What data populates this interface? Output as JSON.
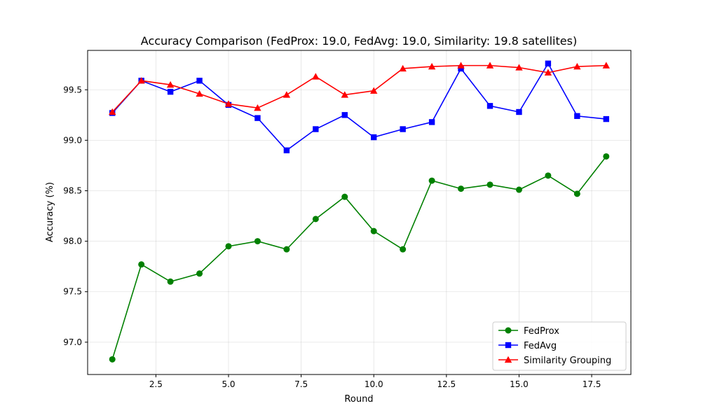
{
  "chart_data": {
    "type": "line",
    "title": "Accuracy Comparison (FedProx: 19.0, FedAvg: 19.0, Similarity: 19.8 satellites)",
    "xlabel": "Round",
    "ylabel": "Accuracy (%)",
    "xlim": [
      0.15,
      18.85
    ],
    "ylim": [
      96.68,
      99.89
    ],
    "x_ticks": [
      2.5,
      5.0,
      7.5,
      10.0,
      12.5,
      15.0,
      17.5
    ],
    "x_tick_labels": [
      "2.5",
      "5.0",
      "7.5",
      "10.0",
      "12.5",
      "15.0",
      "17.5"
    ],
    "y_ticks": [
      97.0,
      97.5,
      98.0,
      98.5,
      99.0,
      99.5
    ],
    "y_tick_labels": [
      "97.0",
      "97.5",
      "98.0",
      "98.5",
      "99.0",
      "99.5"
    ],
    "grid": true,
    "legend_position": "bottom-right",
    "x": [
      1,
      2,
      3,
      4,
      5,
      6,
      7,
      8,
      9,
      10,
      11,
      12,
      13,
      14,
      15,
      16,
      17,
      18
    ],
    "series": [
      {
        "name": "FedProx",
        "color": "#008000",
        "marker": "circle",
        "values": [
          96.83,
          97.77,
          97.6,
          97.68,
          97.95,
          98.0,
          97.92,
          98.22,
          98.44,
          98.1,
          97.92,
          98.6,
          98.52,
          98.56,
          98.51,
          98.65,
          98.47,
          98.84
        ]
      },
      {
        "name": "FedAvg",
        "color": "#0000ff",
        "marker": "square",
        "values": [
          99.27,
          99.59,
          99.48,
          99.59,
          99.35,
          99.22,
          98.9,
          99.11,
          99.25,
          99.03,
          99.11,
          99.18,
          99.71,
          99.34,
          99.28,
          99.76,
          99.24,
          99.21
        ]
      },
      {
        "name": "Similarity Grouping",
        "color": "#ff0000",
        "marker": "triangle",
        "values": [
          99.28,
          99.59,
          99.55,
          99.46,
          99.36,
          99.32,
          99.45,
          99.63,
          99.45,
          99.49,
          99.71,
          99.73,
          99.74,
          99.74,
          99.72,
          99.67,
          99.73,
          99.74
        ]
      }
    ]
  }
}
